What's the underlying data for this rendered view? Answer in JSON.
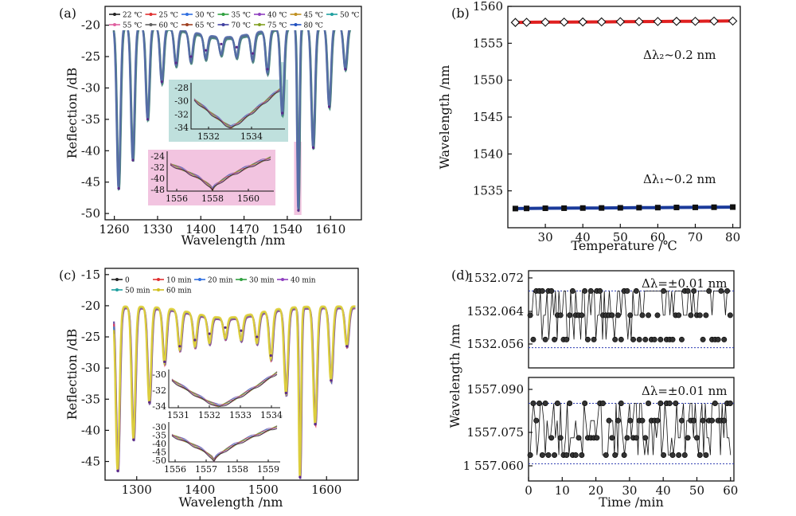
{
  "chart_data": [
    {
      "panel": "(a)",
      "type": "line",
      "xlabel": "Wavelength /nm",
      "ylabel": "Reflection /dB",
      "xlim": [
        1245,
        1660
      ],
      "ylim": [
        -51,
        -17
      ],
      "xticks": [
        1260,
        1330,
        1400,
        1470,
        1540,
        1610
      ],
      "yticks": [
        -20,
        -25,
        -30,
        -35,
        -40,
        -45,
        -50
      ],
      "legend": [
        "22 ℃",
        "25 ℃",
        "30 ℃",
        "35 ℃",
        "40 ℃",
        "45 ℃",
        "50 ℃",
        "55 ℃",
        "60 ℃",
        "65 ℃",
        "70 ℃",
        "75 ℃",
        "80 ℃"
      ],
      "legend_colors": [
        "#222222",
        "#e03030",
        "#3070e0",
        "#30a040",
        "#9040c0",
        "#c09020",
        "#20a0a0",
        "#e060a0",
        "#606060",
        "#a04020",
        "#4040a0",
        "#80a020",
        "#2050c0"
      ],
      "dips": [
        {
          "x": 1267,
          "y": -46
        },
        {
          "x": 1290,
          "y": -41.5
        },
        {
          "x": 1314,
          "y": -35
        },
        {
          "x": 1337,
          "y": -29
        },
        {
          "x": 1360,
          "y": -26
        },
        {
          "x": 1384,
          "y": -25
        },
        {
          "x": 1408,
          "y": -24
        },
        {
          "x": 1433,
          "y": -23
        },
        {
          "x": 1458,
          "y": -23.5
        },
        {
          "x": 1484,
          "y": -24.5
        },
        {
          "x": 1508,
          "y": -27
        },
        {
          "x": 1532,
          "y": -34
        },
        {
          "x": 1558,
          "y": -49.5
        },
        {
          "x": 1582,
          "y": -39.5
        },
        {
          "x": 1608,
          "y": -33
        },
        {
          "x": 1634,
          "y": -27
        }
      ],
      "insets": [
        {
          "name": "inset-1532",
          "xticks": [
            "1532",
            "1534"
          ],
          "yticks": [
            "-28",
            "-30",
            "-32",
            "-34"
          ]
        },
        {
          "name": "inset-1558",
          "xticks": [
            "1556",
            "1558",
            "1560"
          ],
          "yticks": [
            "-24",
            "-32",
            "-40",
            "-48"
          ]
        }
      ]
    },
    {
      "panel": "(b)",
      "type": "line",
      "xlabel": "Temperature /℃",
      "ylabel": "Wavelength /nm",
      "xlim": [
        20,
        82
      ],
      "ylim": [
        1530,
        1560
      ],
      "xticks": [
        30,
        40,
        50,
        60,
        70,
        80
      ],
      "yticks": [
        1535,
        1540,
        1545,
        1550,
        1555,
        1560
      ],
      "annotations": [
        "Δλ₂~0.2 nm",
        "Δλ₁~0.2 nm"
      ],
      "series": [
        {
          "name": "λ2",
          "x": [
            22,
            25,
            30,
            35,
            40,
            45,
            50,
            55,
            60,
            65,
            70,
            75,
            80
          ],
          "values": [
            1557.82,
            1557.84,
            1557.86,
            1557.87,
            1557.89,
            1557.9,
            1557.92,
            1557.94,
            1557.95,
            1557.97,
            1557.98,
            1558.0,
            1558.02
          ],
          "color": "#e02020",
          "marker": "diamond"
        },
        {
          "name": "λ1",
          "x": [
            22,
            25,
            30,
            35,
            40,
            45,
            50,
            55,
            60,
            65,
            70,
            75,
            80
          ],
          "values": [
            1532.6,
            1532.62,
            1532.64,
            1532.65,
            1532.67,
            1532.68,
            1532.7,
            1532.72,
            1532.73,
            1532.75,
            1532.76,
            1532.78,
            1532.8
          ],
          "color": "#1a3a9a",
          "marker": "square"
        }
      ]
    },
    {
      "panel": "(c)",
      "type": "line",
      "xlabel": "Wavelength /nm",
      "ylabel": "Reflection /dB",
      "xlim": [
        1250,
        1650
      ],
      "ylim": [
        -48,
        -14
      ],
      "xticks": [
        1300,
        1400,
        1500,
        1600
      ],
      "yticks": [
        -15,
        -20,
        -25,
        -30,
        -35,
        -40,
        -45
      ],
      "legend": [
        "0",
        "10 min",
        "20 min",
        "30 min",
        "40 min",
        "50 min",
        "60 min"
      ],
      "legend_colors": [
        "#222222",
        "#e03030",
        "#3070e0",
        "#30a040",
        "#9040c0",
        "#20a0a0",
        "#d0c020"
      ],
      "dips": [
        {
          "x": 1270,
          "y": -46.5
        },
        {
          "x": 1295,
          "y": -41.5
        },
        {
          "x": 1320,
          "y": -35.5
        },
        {
          "x": 1344,
          "y": -29
        },
        {
          "x": 1368,
          "y": -26.5
        },
        {
          "x": 1392,
          "y": -25.5
        },
        {
          "x": 1415,
          "y": -24.5
        },
        {
          "x": 1440,
          "y": -23.5
        },
        {
          "x": 1465,
          "y": -24
        },
        {
          "x": 1490,
          "y": -25
        },
        {
          "x": 1512,
          "y": -28
        },
        {
          "x": 1536,
          "y": -34
        },
        {
          "x": 1558,
          "y": -47.5
        },
        {
          "x": 1582,
          "y": -39
        },
        {
          "x": 1607,
          "y": -32
        },
        {
          "x": 1632,
          "y": -26.5
        }
      ],
      "insets": [
        {
          "name": "inset-1532",
          "xticks": [
            "1531",
            "1532",
            "1533",
            "1534"
          ],
          "yticks": [
            "-30",
            "-32",
            "-34"
          ]
        },
        {
          "name": "inset-1558",
          "xticks": [
            "1556",
            "1557",
            "1558",
            "1559"
          ],
          "yticks": [
            "-30",
            "-35",
            "-40",
            "-45",
            "-50"
          ]
        }
      ]
    },
    {
      "panel": "(d)",
      "type": "scatter",
      "xlabel": "Time /min",
      "ylabel": "Wavelength /nm",
      "xlim": [
        0,
        61
      ],
      "xticks": [
        0,
        10,
        20,
        30,
        40,
        50,
        60
      ],
      "subplots": [
        {
          "name": "top",
          "ylim": [
            1532.05,
            1532.074
          ],
          "yticks": [
            "1532.072",
            "1532.064",
            "1532.056"
          ],
          "levels": [
            1532.069,
            1532.063,
            1532.057
          ],
          "bounds": [
            1532.069,
            1532.055
          ],
          "annotation": "Δλ=±0.01 nm"
        },
        {
          "name": "bottom",
          "ylim": [
            1557.058,
            1557.094
          ],
          "yticks": [
            "1557.090",
            "1557.075",
            "1 557.060"
          ],
          "levels": [
            1557.085,
            1557.079,
            1557.073,
            1557.067
          ],
          "bounds": [
            1557.085,
            1557.064
          ],
          "annotation": "Δλ=±0.01 nm"
        }
      ]
    }
  ]
}
